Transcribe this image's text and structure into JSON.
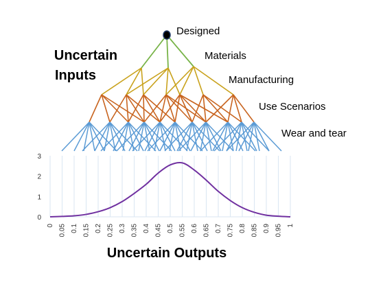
{
  "inputs_title_line1": "Uncertain",
  "inputs_title_line2": "Inputs",
  "outputs_title": "Uncertain Outputs",
  "levels": [
    "Designed",
    "Materials",
    "Manufacturing",
    "Use Scenarios",
    "Wear and tear"
  ],
  "colors": {
    "level1": "#77b347",
    "level2": "#c9a21c",
    "level3": "#c8641f",
    "level4": "#5b9bd5",
    "curve": "#7030a0",
    "grid": "#d9e6f2",
    "root": "#1f3864"
  },
  "chart_data": {
    "type": "line",
    "title": "",
    "xlabel": "",
    "ylabel": "",
    "ylim": [
      0,
      3
    ],
    "yticks": [
      "0",
      "1",
      "2",
      "3"
    ],
    "x": [
      "0",
      "0.05",
      "0.1",
      "0.15",
      "0.2",
      "0.25",
      "0.3",
      "0.35",
      "0.4",
      "0.45",
      "0.5",
      "0.55",
      "0.6",
      "0.65",
      "0.7",
      "0.75",
      "0.8",
      "0.85",
      "0.9",
      "0.95",
      "1"
    ],
    "values": [
      0.0,
      0.02,
      0.05,
      0.12,
      0.25,
      0.45,
      0.75,
      1.15,
      1.6,
      2.15,
      2.55,
      2.65,
      2.3,
      1.8,
      1.25,
      0.8,
      0.45,
      0.22,
      0.08,
      0.03,
      0.0
    ]
  }
}
